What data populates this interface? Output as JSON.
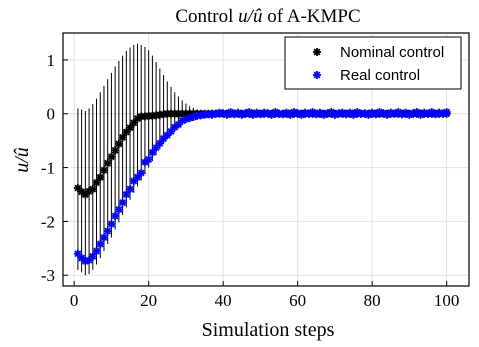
{
  "chart_data": {
    "type": "scatter",
    "title": "Control u/û of A-KMPC",
    "title_parts": {
      "prefix": "Control ",
      "math": "u/û",
      "suffix": " of A-KMPC"
    },
    "xlabel": "Simulation steps",
    "ylabel": "u/û",
    "xlim": [
      -3,
      106
    ],
    "ylim": [
      -3.2,
      1.5
    ],
    "xticks": [
      0,
      20,
      40,
      60,
      80,
      100
    ],
    "yticks": [
      -3,
      -2,
      -1,
      0,
      1
    ],
    "ytick_labels": [
      "-3",
      "-2",
      "-1",
      "0",
      "1"
    ],
    "grid": true,
    "legend_position": "top-right",
    "series": [
      {
        "name": "Nominal control",
        "color": "#000000",
        "marker": "asterisk",
        "x": [
          1,
          2,
          3,
          4,
          5,
          6,
          7,
          8,
          9,
          10,
          11,
          12,
          13,
          14,
          15,
          16,
          17,
          18,
          19,
          20,
          21,
          22,
          23,
          24,
          25,
          26,
          27,
          28,
          29,
          30,
          31,
          32,
          33,
          34,
          35,
          36,
          37,
          38,
          39,
          40,
          41,
          42,
          43,
          44,
          45,
          46,
          47,
          48,
          49,
          50,
          51,
          52,
          53,
          54,
          55,
          56,
          57,
          58,
          59,
          60,
          61,
          62,
          63,
          64,
          65,
          66,
          67,
          68,
          69,
          70,
          71,
          72,
          73,
          74,
          75,
          76,
          77,
          78,
          79,
          80,
          81,
          82,
          83,
          84,
          85,
          86,
          87,
          88,
          89,
          90,
          91,
          92,
          93,
          94,
          95,
          96,
          97,
          98,
          99,
          100
        ],
        "y": [
          -1.38,
          -1.45,
          -1.5,
          -1.44,
          -1.4,
          -1.28,
          -1.18,
          -1.05,
          -0.92,
          -0.8,
          -0.68,
          -0.56,
          -0.44,
          -0.34,
          -0.26,
          -0.17,
          -0.09,
          -0.05,
          -0.05,
          -0.04,
          -0.04,
          -0.03,
          -0.02,
          -0.01,
          0,
          0,
          0,
          0,
          0,
          0,
          0,
          0,
          0,
          0,
          0,
          0,
          0,
          0,
          0,
          0,
          0,
          0,
          0,
          0,
          0,
          0,
          0,
          0,
          0,
          0,
          0,
          0,
          0,
          0,
          0,
          0,
          0,
          0,
          0,
          0,
          0,
          0,
          0,
          0,
          0,
          0,
          0,
          0,
          0,
          0,
          0,
          0,
          0,
          0,
          0,
          0,
          0,
          0,
          0,
          0,
          0,
          0,
          0,
          0,
          0,
          0,
          0,
          0,
          0,
          0,
          0,
          0,
          0,
          0,
          0,
          0,
          0,
          0,
          0,
          0
        ]
      },
      {
        "name": "Real control",
        "color": "#0000ff",
        "marker": "asterisk",
        "x": [
          1,
          2,
          3,
          4,
          5,
          6,
          7,
          8,
          9,
          10,
          11,
          12,
          13,
          14,
          15,
          16,
          17,
          18,
          19,
          20,
          21,
          22,
          23,
          24,
          25,
          26,
          27,
          28,
          29,
          30,
          31,
          32,
          33,
          34,
          35,
          36,
          37,
          38,
          39,
          40,
          41,
          42,
          43,
          44,
          45,
          46,
          47,
          48,
          49,
          50,
          51,
          52,
          53,
          54,
          55,
          56,
          57,
          58,
          59,
          60,
          61,
          62,
          63,
          64,
          65,
          66,
          67,
          68,
          69,
          70,
          71,
          72,
          73,
          74,
          75,
          76,
          77,
          78,
          79,
          80,
          81,
          82,
          83,
          84,
          85,
          86,
          87,
          88,
          89,
          90,
          91,
          92,
          93,
          94,
          95,
          96,
          97,
          98,
          99,
          100
        ],
        "y": [
          -2.6,
          -2.68,
          -2.74,
          -2.72,
          -2.65,
          -2.55,
          -2.42,
          -2.3,
          -2.18,
          -2.05,
          -1.9,
          -1.78,
          -1.65,
          -1.5,
          -1.4,
          -1.25,
          -1.18,
          -1.1,
          -0.9,
          -0.85,
          -0.72,
          -0.63,
          -0.55,
          -0.46,
          -0.4,
          -0.33,
          -0.25,
          -0.2,
          -0.13,
          -0.1,
          -0.08,
          -0.06,
          -0.04,
          -0.03,
          -0.02,
          -0.01,
          -0.02,
          0,
          0.02,
          0.01,
          -0.02,
          0.03,
          -0.01,
          0.02,
          -0.02,
          0.01,
          0.03,
          -0.02,
          0.02,
          -0.01,
          0.02,
          0.01,
          -0.02,
          0.03,
          0,
          -0.01,
          0.02,
          -0.02,
          0.03,
          0.01,
          -0.02,
          0.02,
          0,
          0.03,
          -0.01,
          0.02,
          -0.02,
          0.01,
          0.03,
          -0.02,
          0.01,
          0.02,
          -0.01,
          0.02,
          -0.02,
          0.03,
          0,
          0.01,
          -0.02,
          0.02,
          -0.01,
          0.03,
          0.01,
          -0.02,
          0.02,
          0,
          0.03,
          -0.01,
          0.02,
          -0.02,
          0.01,
          0.03,
          -0.02,
          0.02,
          0,
          0.03,
          -0.01,
          0.02,
          0,
          0.03
        ]
      }
    ],
    "error_band": {
      "color": "#000000",
      "x": [
        1,
        2,
        3,
        4,
        5,
        6,
        7,
        8,
        9,
        10,
        11,
        12,
        13,
        14,
        15,
        16,
        17,
        18,
        19,
        20,
        21,
        22,
        23,
        24,
        25,
        26,
        27,
        28,
        29,
        30,
        31,
        32,
        33,
        34,
        35,
        36,
        37,
        38,
        39,
        40,
        41,
        42,
        43,
        44,
        45,
        46,
        47,
        48,
        49,
        50,
        51,
        52,
        53,
        54,
        55,
        56,
        57,
        58,
        59,
        60,
        61,
        62,
        63,
        64,
        65,
        66,
        67,
        68,
        69,
        70,
        71,
        72,
        73,
        74,
        75,
        76,
        77,
        78,
        79,
        80,
        81,
        82,
        83,
        84,
        85,
        86,
        87,
        88,
        89,
        90,
        91,
        92,
        93,
        94,
        95,
        96,
        97,
        98,
        99,
        100
      ],
      "low": [
        -2.9,
        -2.95,
        -3.0,
        -2.98,
        -2.9,
        -2.8,
        -2.68,
        -2.55,
        -2.42,
        -2.3,
        -2.15,
        -2.02,
        -1.88,
        -1.74,
        -1.6,
        -1.47,
        -1.35,
        -1.24,
        -1.12,
        -1.0,
        -0.88,
        -0.77,
        -0.66,
        -0.56,
        -0.47,
        -0.39,
        -0.32,
        -0.26,
        -0.2,
        -0.15,
        -0.11,
        -0.08,
        -0.06,
        -0.05,
        -0.04,
        -0.03,
        -0.03,
        -0.03,
        -0.02,
        -0.02,
        -0.02,
        -0.02,
        -0.02,
        -0.02,
        -0.02,
        -0.02,
        -0.02,
        -0.02,
        -0.02,
        -0.02,
        -0.02,
        -0.02,
        -0.02,
        -0.02,
        -0.02,
        -0.02,
        -0.02,
        -0.02,
        -0.02,
        -0.02,
        -0.02,
        -0.02,
        -0.02,
        -0.02,
        -0.02,
        -0.02,
        -0.02,
        -0.02,
        -0.02,
        -0.02,
        -0.02,
        -0.02,
        -0.02,
        -0.02,
        -0.02,
        -0.02,
        -0.02,
        -0.02,
        -0.02,
        -0.02,
        -0.02,
        -0.02,
        -0.02,
        -0.02,
        -0.02,
        -0.02,
        -0.02,
        -0.02,
        -0.02,
        -0.02,
        -0.02,
        -0.02,
        -0.02,
        -0.02,
        -0.02,
        -0.02,
        -0.02,
        -0.02,
        -0.02,
        -0.02
      ],
      "high": [
        0.1,
        0.08,
        0.05,
        0.1,
        0.18,
        0.28,
        0.4,
        0.52,
        0.64,
        0.76,
        0.88,
        0.98,
        1.08,
        1.17,
        1.23,
        1.28,
        1.3,
        1.28,
        1.24,
        1.18,
        1.08,
        0.96,
        0.84,
        0.72,
        0.6,
        0.5,
        0.4,
        0.32,
        0.25,
        0.19,
        0.14,
        0.11,
        0.08,
        0.06,
        0.05,
        0.04,
        0.03,
        0.03,
        0.02,
        0.02,
        0.02,
        0.02,
        0.02,
        0.02,
        0.02,
        0.02,
        0.02,
        0.02,
        0.02,
        0.02,
        0.02,
        0.02,
        0.02,
        0.02,
        0.02,
        0.02,
        0.02,
        0.02,
        0.02,
        0.02,
        0.02,
        0.02,
        0.02,
        0.02,
        0.02,
        0.02,
        0.02,
        0.02,
        0.02,
        0.02,
        0.02,
        0.02,
        0.02,
        0.02,
        0.02,
        0.02,
        0.02,
        0.02,
        0.02,
        0.02,
        0.02,
        0.02,
        0.02,
        0.02,
        0.02,
        0.02,
        0.02,
        0.02,
        0.02,
        0.02,
        0.02,
        0.02,
        0.02,
        0.02,
        0.02,
        0.02,
        0.02,
        0.02,
        0.02,
        0.02
      ]
    }
  }
}
